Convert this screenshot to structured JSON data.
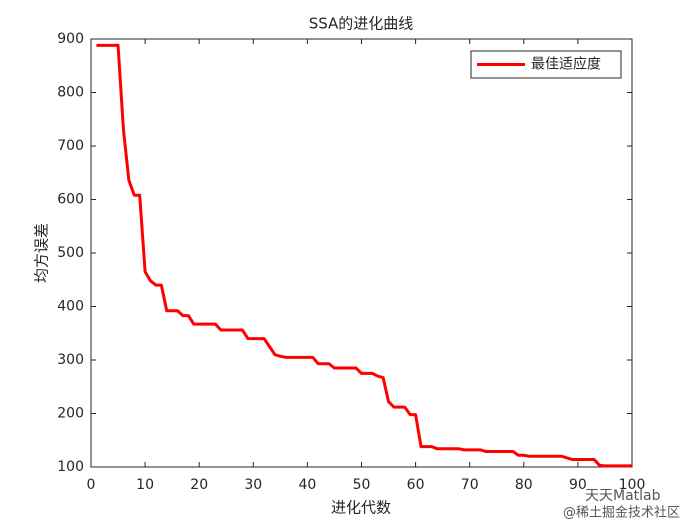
{
  "chart_data": {
    "type": "line",
    "title": "SSA的进化曲线",
    "x_label": "进化代数",
    "y_label": "均方误差",
    "x": [
      1,
      2,
      3,
      4,
      5,
      6,
      7,
      8,
      9,
      10,
      11,
      12,
      13,
      14,
      15,
      16,
      17,
      18,
      19,
      20,
      21,
      22,
      23,
      24,
      25,
      26,
      27,
      28,
      29,
      30,
      31,
      32,
      33,
      34,
      35,
      36,
      37,
      38,
      39,
      40,
      41,
      42,
      43,
      44,
      45,
      46,
      47,
      48,
      49,
      50,
      51,
      52,
      53,
      54,
      55,
      56,
      57,
      58,
      59,
      60,
      61,
      62,
      63,
      64,
      65,
      66,
      67,
      68,
      69,
      70,
      71,
      72,
      73,
      74,
      75,
      76,
      77,
      78,
      79,
      80,
      81,
      82,
      83,
      84,
      85,
      86,
      87,
      88,
      89,
      90,
      91,
      92,
      93,
      94,
      95,
      96,
      97,
      98,
      99,
      100
    ],
    "series": [
      {
        "name": "最佳适应度",
        "color": "#ff0000",
        "values": [
          888,
          888,
          888,
          888,
          888,
          730,
          636,
          608,
          608,
          465,
          448,
          440,
          440,
          392,
          392,
          392,
          383,
          383,
          367,
          367,
          367,
          367,
          367,
          356,
          356,
          356,
          356,
          356,
          340,
          340,
          340,
          340,
          325,
          310,
          307,
          305,
          305,
          305,
          305,
          305,
          305,
          293,
          293,
          293,
          285,
          285,
          285,
          285,
          285,
          275,
          275,
          275,
          270,
          267,
          222,
          212,
          212,
          212,
          198,
          198,
          138,
          138,
          138,
          134,
          134,
          134,
          134,
          134,
          132,
          132,
          132,
          132,
          129,
          129,
          129,
          129,
          129,
          129,
          122,
          122,
          120,
          120,
          120,
          120,
          120,
          120,
          120,
          117,
          114,
          114,
          114,
          114,
          114,
          103,
          102,
          102,
          102,
          102,
          102,
          102
        ]
      }
    ],
    "xlim": [
      0,
      100
    ],
    "xticks": [
      0,
      10,
      20,
      30,
      40,
      50,
      60,
      70,
      80,
      90,
      100
    ],
    "ylim": [
      100,
      900
    ],
    "yticks": [
      100,
      200,
      300,
      400,
      500,
      600,
      700,
      800,
      900
    ],
    "legend": "upper right",
    "grid": false,
    "watermark": [
      "天天Matlab",
      "@稀土掘金技术社区"
    ]
  }
}
